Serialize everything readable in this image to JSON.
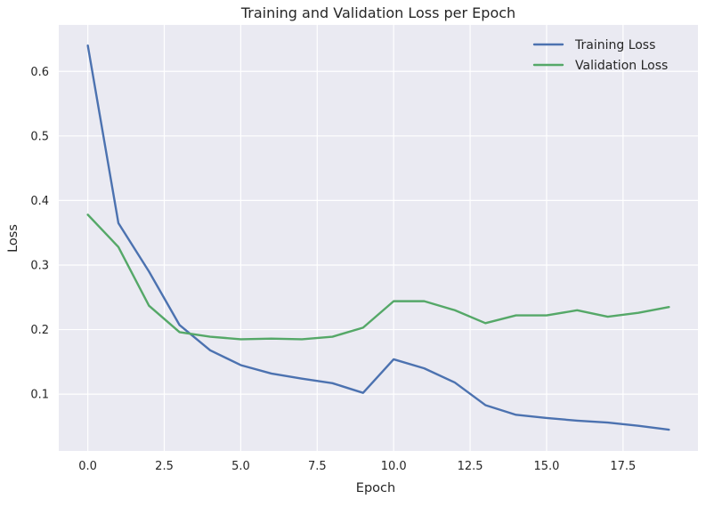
{
  "chart_data": {
    "type": "line",
    "title": "Training and Validation Loss per Epoch",
    "xlabel": "Epoch",
    "ylabel": "Loss",
    "xlim": [
      -0.95,
      19.95
    ],
    "ylim": [
      0.012,
      0.672
    ],
    "xticks": [
      0.0,
      2.5,
      5.0,
      7.5,
      10.0,
      12.5,
      15.0,
      17.5
    ],
    "xtick_labels": [
      "0.0",
      "2.5",
      "5.0",
      "7.5",
      "10.0",
      "12.5",
      "15.0",
      "17.5"
    ],
    "yticks": [
      0.1,
      0.2,
      0.3,
      0.4,
      0.5,
      0.6
    ],
    "ytick_labels": [
      "0.1",
      "0.2",
      "0.3",
      "0.4",
      "0.5",
      "0.6"
    ],
    "grid": true,
    "legend_position": "top-right",
    "background_color": "#eaeaf2",
    "x": [
      0,
      1,
      2,
      3,
      4,
      5,
      6,
      7,
      8,
      9,
      10,
      11,
      12,
      13,
      14,
      15,
      16,
      17,
      18,
      19
    ],
    "series": [
      {
        "name": "Training Loss",
        "color": "#4c72b0",
        "values": [
          0.64,
          0.365,
          0.29,
          0.207,
          0.168,
          0.145,
          0.132,
          0.124,
          0.117,
          0.102,
          0.154,
          0.14,
          0.118,
          0.083,
          0.068,
          0.063,
          0.059,
          0.056,
          0.051,
          0.045
        ]
      },
      {
        "name": "Validation Loss",
        "color": "#55a868",
        "values": [
          0.378,
          0.328,
          0.237,
          0.196,
          0.189,
          0.185,
          0.186,
          0.185,
          0.189,
          0.203,
          0.244,
          0.244,
          0.23,
          0.21,
          0.222,
          0.222,
          0.23,
          0.22,
          0.226,
          0.235
        ]
      }
    ]
  }
}
